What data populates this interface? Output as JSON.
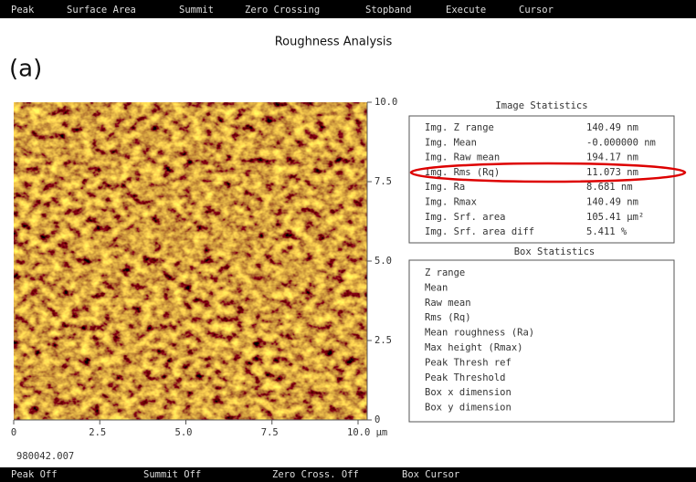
{
  "menu": [
    "Peak",
    "Surface Area",
    "Summit",
    "Zero Crossing",
    "Stopband",
    "Execute",
    "Cursor"
  ],
  "title": "Roughness Analysis",
  "panel_label": "(a)",
  "image": {
    "y_ticks": [
      "10.0",
      "7.5",
      "5.0",
      "2.5",
      "0"
    ],
    "x_ticks": [
      "0",
      "2.5",
      "5.0",
      "7.5",
      "10.0 μm"
    ]
  },
  "image_statistics": {
    "title": "Image Statistics",
    "rows": [
      [
        "Img. Z range",
        "140.49 nm"
      ],
      [
        "Img. Mean",
        "-0.000000 nm"
      ],
      [
        "Img. Raw mean",
        "194.17 nm"
      ],
      [
        "Img. Rms (Rq)",
        "11.073 nm"
      ],
      [
        "Img. Ra",
        "8.681 nm"
      ],
      [
        "Img. Rmax",
        "140.49 nm"
      ],
      [
        "Img. Srf. area",
        "105.41 μm²"
      ],
      [
        "Img. Srf. area diff",
        "5.411 %"
      ]
    ]
  },
  "box_statistics": {
    "title": "Box Statistics",
    "rows": [
      "Z range",
      "Mean",
      "Raw mean",
      "Rms (Rq)",
      "Mean roughness (Ra)",
      "Max height (Rmax)",
      "Peak Thresh ref",
      "Peak Threshold",
      "Box x dimension",
      "Box y dimension"
    ]
  },
  "file_id": "980042.007",
  "status": [
    "Peak Off",
    "Summit Off",
    "Zero Cross. Off",
    "Box Cursor"
  ]
}
